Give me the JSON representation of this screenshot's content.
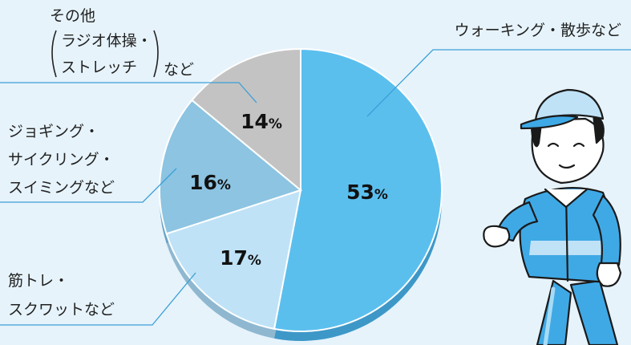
{
  "chart_data": {
    "type": "pie",
    "slices": [
      {
        "label_lines": [
          "ウォーキング・散歩など"
        ],
        "value": 53,
        "color": "#5bbfee"
      },
      {
        "label_lines": [
          "筋トレ・",
          "スクワットなど"
        ],
        "value": 17,
        "color": "#bfe2f7"
      },
      {
        "label_lines": [
          "ジョギング・",
          "サイクリング・",
          "スイミングなど"
        ],
        "value": 16,
        "color": "#8cc4e2"
      },
      {
        "label_lines": [
          "その他",
          "ラジオ体操・",
          "ストレッチ",
          "など"
        ],
        "value": 14,
        "color": "#c3c3c3"
      }
    ],
    "unit": "%"
  }
}
